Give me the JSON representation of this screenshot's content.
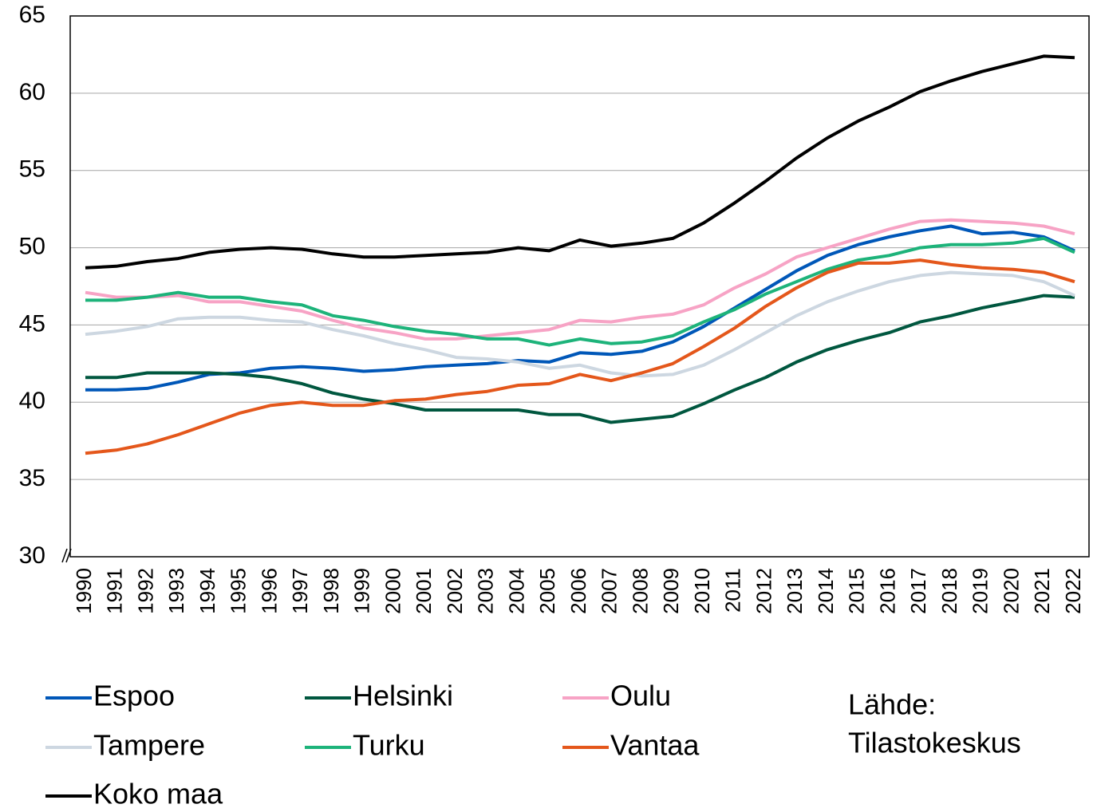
{
  "chart_data": {
    "type": "line",
    "categories": [
      "1990",
      "1991",
      "1992",
      "1993",
      "1994",
      "1995",
      "1996",
      "1997",
      "1998",
      "1999",
      "2000",
      "2001",
      "2002",
      "2003",
      "2004",
      "2005",
      "2006",
      "2007",
      "2008",
      "2009",
      "2010",
      "2011",
      "2012",
      "2013",
      "2014",
      "2015",
      "2016",
      "2017",
      "2018",
      "2019",
      "2020",
      "2021",
      "2022"
    ],
    "series": [
      {
        "name": "Espoo",
        "color": "#0057b8",
        "values": [
          40.8,
          40.8,
          40.9,
          41.3,
          41.8,
          41.9,
          42.2,
          42.3,
          42.2,
          42.0,
          42.1,
          42.3,
          42.4,
          42.5,
          42.7,
          42.6,
          43.2,
          43.1,
          43.3,
          43.9,
          44.9,
          46.1,
          47.3,
          48.5,
          49.5,
          50.2,
          50.7,
          51.1,
          51.4,
          50.9,
          51.0,
          50.7,
          49.8
        ]
      },
      {
        "name": "Helsinki",
        "color": "#00573f",
        "values": [
          41.6,
          41.6,
          41.9,
          41.9,
          41.9,
          41.8,
          41.6,
          41.2,
          40.6,
          40.2,
          39.9,
          39.5,
          39.5,
          39.5,
          39.5,
          39.2,
          39.2,
          38.7,
          38.9,
          39.1,
          39.9,
          40.8,
          41.6,
          42.6,
          43.4,
          44.0,
          44.5,
          45.2,
          45.6,
          46.1,
          46.5,
          46.9,
          46.8
        ]
      },
      {
        "name": "Oulu",
        "color": "#f7a3c5",
        "values": [
          47.1,
          46.8,
          46.8,
          46.9,
          46.5,
          46.5,
          46.2,
          45.9,
          45.3,
          44.8,
          44.5,
          44.1,
          44.1,
          44.3,
          44.5,
          44.7,
          45.3,
          45.2,
          45.5,
          45.7,
          46.3,
          47.4,
          48.3,
          49.4,
          50.0,
          50.6,
          51.2,
          51.7,
          51.8,
          51.7,
          51.6,
          51.4,
          50.9
        ]
      },
      {
        "name": "Tampere",
        "color": "#cdd7e1",
        "values": [
          44.4,
          44.6,
          44.9,
          45.4,
          45.5,
          45.5,
          45.3,
          45.2,
          44.7,
          44.3,
          43.8,
          43.4,
          42.9,
          42.8,
          42.6,
          42.2,
          42.4,
          41.9,
          41.7,
          41.8,
          42.4,
          43.4,
          44.5,
          45.6,
          46.5,
          47.2,
          47.8,
          48.2,
          48.4,
          48.3,
          48.2,
          47.8,
          46.9
        ]
      },
      {
        "name": "Turku",
        "color": "#1db37a",
        "values": [
          46.6,
          46.6,
          46.8,
          47.1,
          46.8,
          46.8,
          46.5,
          46.3,
          45.6,
          45.3,
          44.9,
          44.6,
          44.4,
          44.1,
          44.1,
          43.7,
          44.1,
          43.8,
          43.9,
          44.3,
          45.2,
          46.0,
          47.0,
          47.8,
          48.6,
          49.2,
          49.5,
          50.0,
          50.2,
          50.2,
          50.3,
          50.6,
          49.7
        ]
      },
      {
        "name": "Vantaa",
        "color": "#e4571b",
        "values": [
          36.7,
          36.9,
          37.3,
          37.9,
          38.6,
          39.3,
          39.8,
          40.0,
          39.8,
          39.8,
          40.1,
          40.2,
          40.5,
          40.7,
          41.1,
          41.2,
          41.8,
          41.4,
          41.9,
          42.5,
          43.6,
          44.8,
          46.2,
          47.4,
          48.4,
          49.0,
          49.0,
          49.2,
          48.9,
          48.7,
          48.6,
          48.4,
          47.8
        ]
      },
      {
        "name": "Koko maa",
        "color": "#000000",
        "values": [
          48.7,
          48.8,
          49.1,
          49.3,
          49.7,
          49.9,
          50.0,
          49.9,
          49.6,
          49.4,
          49.4,
          49.5,
          49.6,
          49.7,
          50.0,
          49.8,
          50.5,
          50.1,
          50.3,
          50.6,
          51.6,
          52.9,
          54.3,
          55.8,
          57.1,
          58.2,
          59.1,
          60.1,
          60.8,
          61.4,
          61.9,
          62.4,
          62.3
        ]
      }
    ],
    "ylim": [
      30,
      65
    ],
    "yticks": [
      30,
      35,
      40,
      45,
      50,
      55,
      60,
      65
    ],
    "grid": true,
    "annotation": [
      "Lähde:",
      "Tilastokeskus"
    ]
  }
}
